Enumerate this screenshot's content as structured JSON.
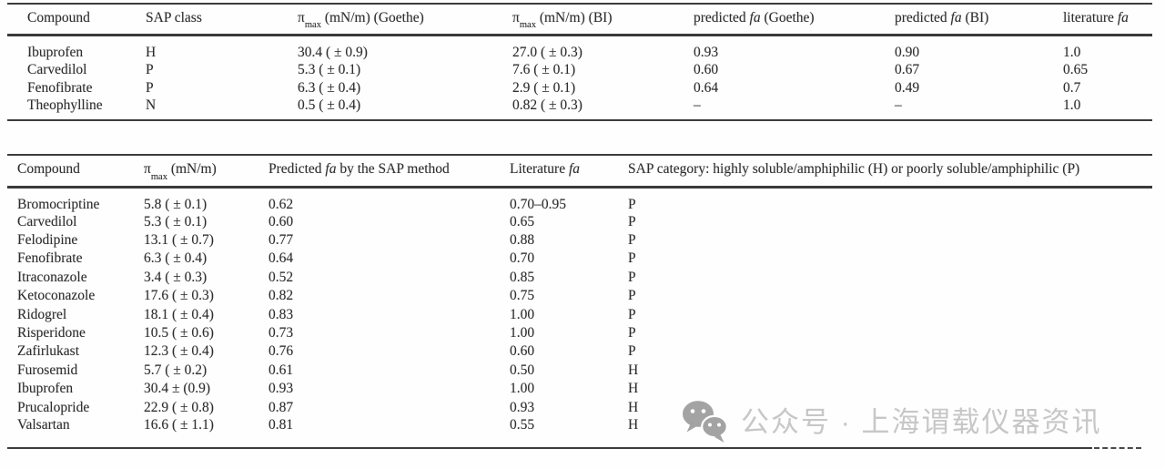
{
  "page": {
    "background": "#fefefe",
    "text_color": "#2e2e2e",
    "rule_color": "#3c3c3c",
    "watermark_gray": "#c7c7c7",
    "icon_gray": "#a3a3a3"
  },
  "table1": {
    "headers": [
      {
        "text": "Compound"
      },
      {
        "text": "SAP class"
      },
      {
        "pre": "π",
        "sub": "max",
        "post": " (mN/m) (Goethe)"
      },
      {
        "pre": "π",
        "sub": "max",
        "post": " (mN/m) (BI)"
      },
      {
        "pre": "predicted ",
        "italic": "fa",
        "post": " (Goethe)"
      },
      {
        "pre": "predicted ",
        "italic": "fa",
        "post": " (BI)"
      },
      {
        "pre": "literature ",
        "italic": "fa",
        "post": ""
      }
    ],
    "rows": [
      [
        "Ibuprofen",
        "H",
        "30.4 ( ± 0.9)",
        "27.0 ( ± 0.3)",
        "0.93",
        "0.90",
        "1.0"
      ],
      [
        "Carvedilol",
        "P",
        "5.3 ( ± 0.1)",
        "7.6 ( ± 0.1)",
        "0.60",
        "0.67",
        "0.65"
      ],
      [
        "Fenofibrate",
        "P",
        "6.3 ( ± 0.4)",
        "2.9 ( ± 0.1)",
        "0.64",
        "0.49",
        "0.7"
      ],
      [
        "Theophylline",
        "N",
        "0.5 ( ± 0.4)",
        "0.82 ( ± 0.3)",
        "–",
        "–",
        "1.0"
      ]
    ]
  },
  "table2": {
    "headers": [
      {
        "text": "Compound"
      },
      {
        "pre": "π",
        "sub": "max",
        "post": " (mN/m)"
      },
      {
        "pre": "Predicted ",
        "italic": "fa",
        "post": " by the SAP method"
      },
      {
        "pre": "Literature ",
        "italic": "fa",
        "post": ""
      },
      {
        "text": "SAP category: highly soluble/amphiphilic (H) or poorly soluble/amphiphilic (P)"
      }
    ],
    "rows": [
      [
        "Bromocriptine",
        "5.8 ( ± 0.1)",
        "0.62",
        "0.70–0.95",
        "P"
      ],
      [
        "Carvedilol",
        "5.3 ( ± 0.1)",
        "0.60",
        "0.65",
        "P"
      ],
      [
        "Felodipine",
        "13.1 ( ± 0.7)",
        "0.77",
        "0.88",
        "P"
      ],
      [
        "Fenofibrate",
        "6.3 ( ± 0.4)",
        "0.64",
        "0.70",
        "P"
      ],
      [
        "Itraconazole",
        "3.4 ( ± 0.3)",
        "0.52",
        "0.85",
        "P"
      ],
      [
        "Ketoconazole",
        "17.6 ( ± 0.3)",
        "0.82",
        "0.75",
        "P"
      ],
      [
        "Ridogrel",
        "18.1 ( ± 0.4)",
        "0.83",
        "1.00",
        "P"
      ],
      [
        "Risperidone",
        "10.5 ( ± 0.6)",
        "0.73",
        "1.00",
        "P"
      ],
      [
        "Zafirlukast",
        "12.3 ( ± 0.4)",
        "0.76",
        "0.60",
        "P"
      ],
      [
        "Furosemid",
        "5.7 ( ± 0.2)",
        "0.61",
        "0.50",
        "H"
      ],
      [
        "Ibuprofen",
        "30.4 ± (0.9)",
        "0.93",
        "1.00",
        "H"
      ],
      [
        "Prucalopride",
        "22.9 ( ± 0.8)",
        "0.87",
        "0.93",
        "H"
      ],
      [
        "Valsartan",
        "16.6 ( ± 1.1)",
        "0.81",
        "0.55",
        "H"
      ]
    ]
  },
  "watermark": {
    "icon": "wechat-icon",
    "text": "公众号 · 上海谓载仪器资讯"
  }
}
